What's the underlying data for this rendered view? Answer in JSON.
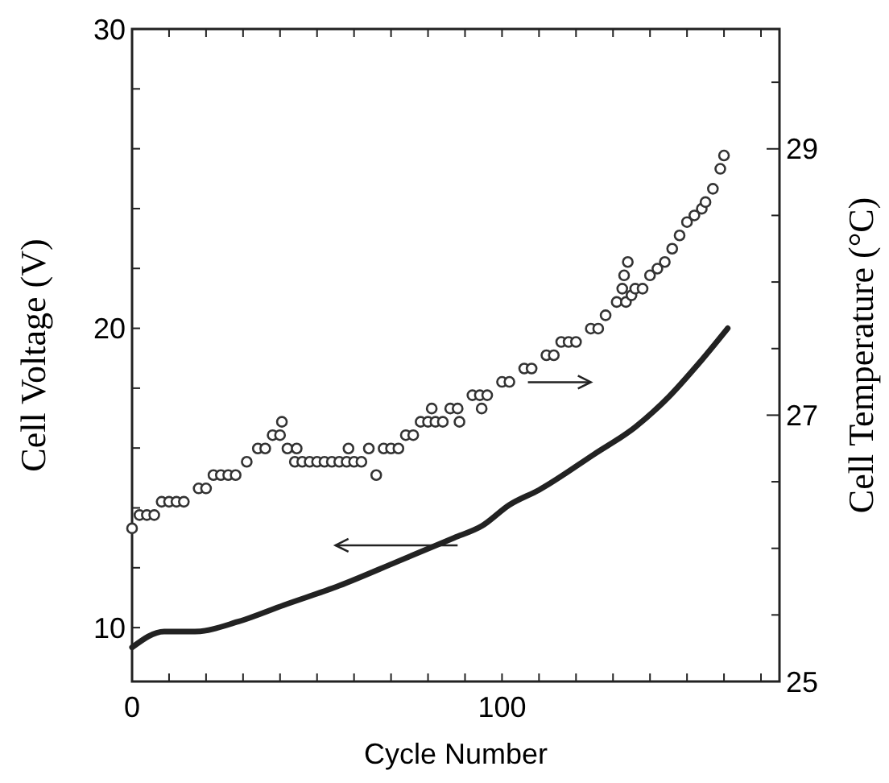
{
  "chart_data": {
    "type": "line",
    "xlabel": "Cycle Number",
    "ylabel": "Cell Voltage (V)",
    "y2label": "Cell Temperature (°C)",
    "xlim": [
      0,
      175
    ],
    "xticks": [
      0,
      {
        "value": 10,
        "label": null
      },
      {
        "value": 20,
        "label": null
      },
      {
        "value": 30,
        "label": null
      },
      {
        "value": 40,
        "label": null
      },
      {
        "value": 50,
        "label": null
      },
      {
        "value": 60,
        "label": null
      },
      {
        "value": 70,
        "label": null
      },
      {
        "value": 80,
        "label": null
      },
      {
        "value": 90,
        "label": null
      },
      100,
      {
        "value": 110,
        "label": null
      },
      {
        "value": 120,
        "label": null
      },
      {
        "value": 130,
        "label": null
      },
      {
        "value": 140,
        "label": null
      },
      {
        "value": 150,
        "label": null
      },
      {
        "value": 160,
        "label": null
      },
      {
        "value": 170,
        "label": null
      }
    ],
    "ylim": [
      8.2,
      30
    ],
    "yticks": [
      10,
      {
        "value": 12,
        "label": null
      },
      {
        "value": 14,
        "label": null
      },
      {
        "value": 16,
        "label": null
      },
      {
        "value": 18,
        "label": null
      },
      20,
      {
        "value": 22,
        "label": null
      },
      {
        "value": 24,
        "label": null
      },
      {
        "value": 26,
        "label": null
      },
      {
        "value": 28,
        "label": null
      },
      30
    ],
    "y2lim": [
      25,
      29.9
    ],
    "y2ticks": [
      25,
      {
        "value": 25.5,
        "label": null
      },
      {
        "value": 26,
        "label": null
      },
      {
        "value": 26.5,
        "label": null
      },
      27,
      {
        "value": 27.5,
        "label": null
      },
      {
        "value": 28,
        "label": null
      },
      {
        "value": 28.5,
        "label": null
      },
      29,
      {
        "value": 29.5,
        "label": null
      }
    ],
    "grid": false,
    "series": [
      {
        "color": "#222222",
        "line_style": "solid",
        "marker": "none",
        "x": [
          0,
          8.7,
          17,
          28.7,
          41,
          56,
          71.6,
          87,
          94.6,
          102,
          110,
          125,
          136,
          145,
          153,
          161
        ],
        "values": [
          9.34,
          9.87,
          9.87,
          10.2,
          10.75,
          11.4,
          12.2,
          13.0,
          13.4,
          14.1,
          14.6,
          15.8,
          16.7,
          17.7,
          18.8,
          20.0
        ]
      },
      {
        "type": "scatter",
        "axis": "y2",
        "color": "#333333",
        "marker": "circle",
        "x": [
          0,
          2,
          4,
          6,
          8,
          10,
          12,
          14,
          18,
          20,
          22,
          24,
          26,
          28,
          31,
          34,
          36,
          38,
          40,
          40.5,
          42,
          44,
          44.5,
          46,
          48,
          50,
          52,
          54,
          56,
          58,
          58.5,
          60,
          62,
          64,
          66,
          68,
          70,
          72,
          74,
          76,
          78,
          80,
          81,
          82,
          84,
          86,
          88,
          88.5,
          92,
          94,
          94.5,
          96,
          100,
          102,
          106,
          108,
          112,
          114,
          116,
          118,
          120,
          124,
          126,
          128,
          131,
          132.5,
          133,
          134,
          133.5,
          135,
          136,
          138,
          140,
          142,
          144,
          146,
          148,
          150,
          152,
          154,
          155,
          157,
          159,
          160
        ],
        "values": [
          26.15,
          26.25,
          26.25,
          26.25,
          26.35,
          26.35,
          26.35,
          26.35,
          26.45,
          26.45,
          26.55,
          26.55,
          26.55,
          26.55,
          26.65,
          26.75,
          26.75,
          26.85,
          26.85,
          26.95,
          26.75,
          26.65,
          26.75,
          26.65,
          26.65,
          26.65,
          26.65,
          26.65,
          26.65,
          26.65,
          26.75,
          26.65,
          26.65,
          26.75,
          26.55,
          26.75,
          26.75,
          26.75,
          26.85,
          26.85,
          26.95,
          26.95,
          27.05,
          26.95,
          26.95,
          27.05,
          27.05,
          26.95,
          27.15,
          27.15,
          27.05,
          27.15,
          27.25,
          27.25,
          27.35,
          27.35,
          27.45,
          27.45,
          27.55,
          27.55,
          27.55,
          27.65,
          27.65,
          27.75,
          27.85,
          27.95,
          28.05,
          28.15,
          27.85,
          27.9,
          27.95,
          27.95,
          28.05,
          28.1,
          28.15,
          28.25,
          28.35,
          28.45,
          28.5,
          28.55,
          28.6,
          28.7,
          28.85,
          28.95
        ]
      }
    ]
  }
}
